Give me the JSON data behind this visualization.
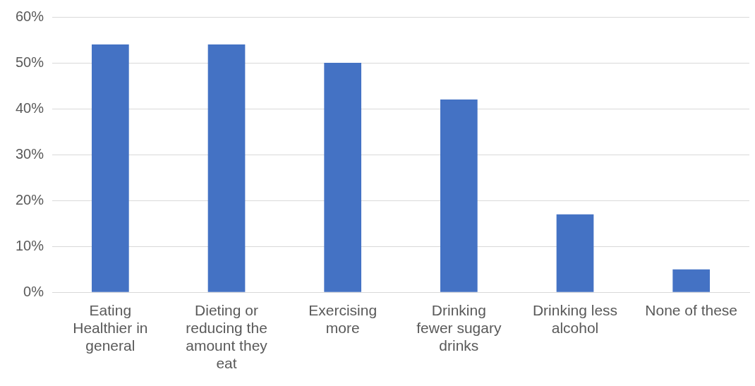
{
  "chart_data": {
    "type": "bar",
    "categories": [
      "Eating Healthier in general",
      "Dieting or reducing the amount they eat",
      "Exercising more",
      "Drinking fewer sugary drinks",
      "Drinking less alcohol",
      "None of these"
    ],
    "values": [
      54,
      54,
      50,
      42,
      17,
      5
    ],
    "color": "#4472c4",
    "ylim": [
      0,
      60
    ],
    "yticks": [
      {
        "value": 0,
        "label": "0%"
      },
      {
        "value": 10,
        "label": "10%"
      },
      {
        "value": 20,
        "label": "20%"
      },
      {
        "value": 30,
        "label": "30%"
      },
      {
        "value": 40,
        "label": "40%"
      },
      {
        "value": 50,
        "label": "50%"
      },
      {
        "value": 60,
        "label": "60%"
      }
    ],
    "grid": "y",
    "legend": false
  }
}
